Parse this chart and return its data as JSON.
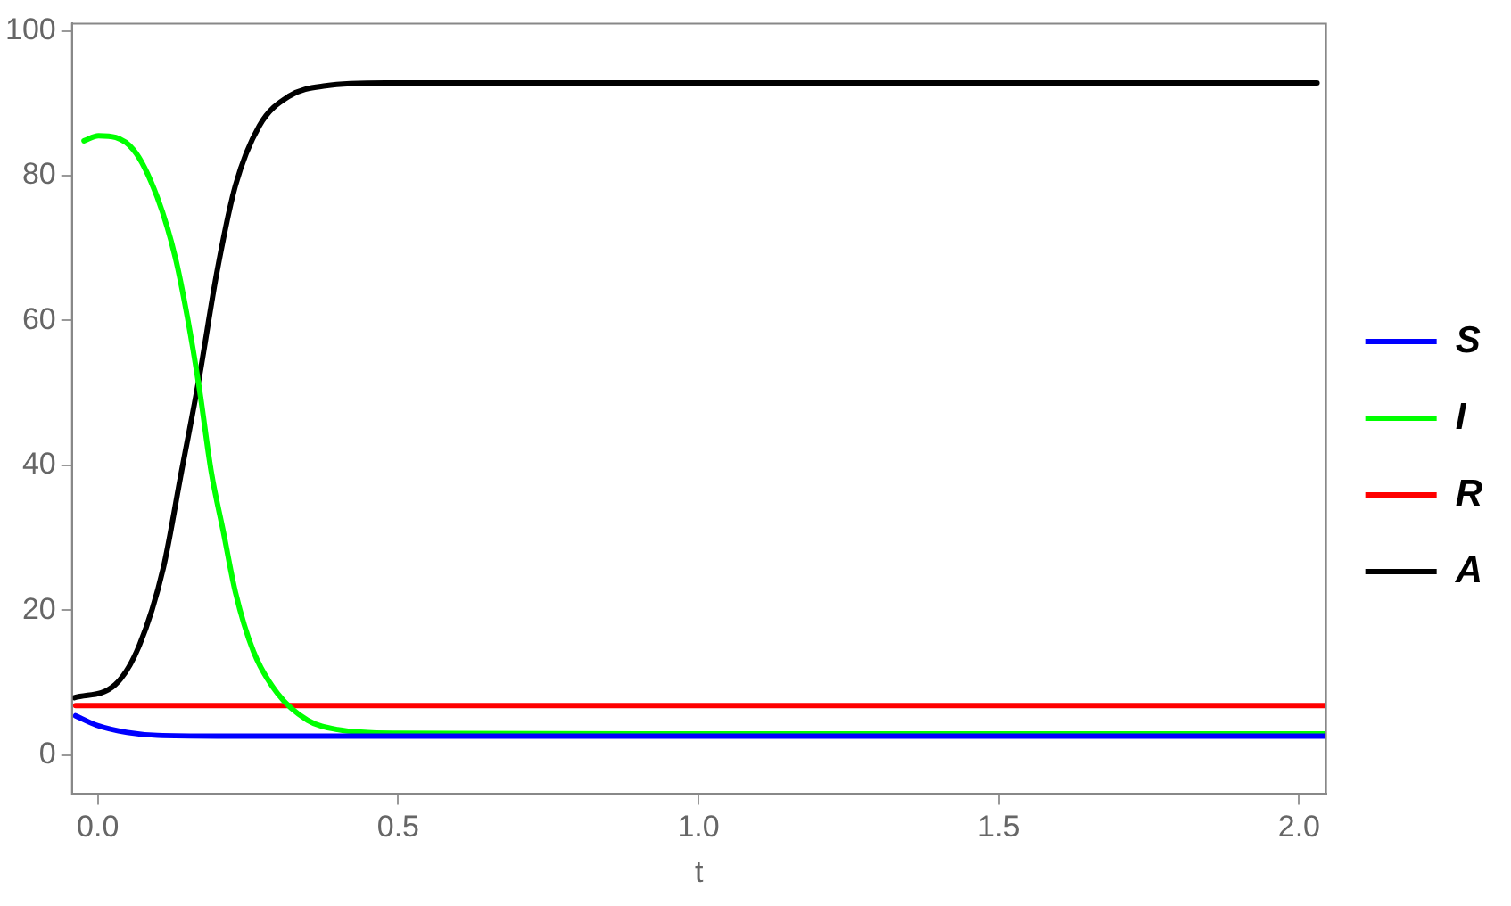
{
  "chart_data": {
    "type": "line",
    "xlabel": "t",
    "xlim": [
      -0.043,
      2.045
    ],
    "xticks": [
      {
        "value": 0,
        "label": "0.0"
      },
      {
        "value": 0.5,
        "label": "0.5"
      },
      {
        "value": 1,
        "label": "1.0"
      },
      {
        "value": 1.5,
        "label": "1.5"
      },
      {
        "value": 2,
        "label": "2.0"
      }
    ],
    "ylim": [
      -5.4,
      101
    ],
    "yticks": [
      0,
      20,
      40,
      60,
      80,
      100
    ],
    "legend": "right",
    "grid": false,
    "marker": "none",
    "line_style": "solid",
    "series": [
      {
        "name": "S",
        "color": "#0000ff",
        "x": [
          -0.037,
          -0.002,
          0.049,
          0.099,
          0.199,
          0.5,
          1,
          1.5,
          2.045
        ],
        "values": [
          5.4,
          4.1,
          3.1,
          2.7,
          2.6,
          2.6,
          2.6,
          2.6,
          2.6
        ]
      },
      {
        "name": "I",
        "color": "#00ff00",
        "x": [
          -0.023,
          0.001,
          0.059,
          0.099,
          0.129,
          0.149,
          0.169,
          0.189,
          0.209,
          0.229,
          0.259,
          0.299,
          0.349,
          0.399,
          0.498,
          1,
          1.5,
          2.045
        ],
        "values": [
          84.8,
          85.5,
          83.6,
          77,
          68.7,
          60.5,
          50.6,
          39,
          30.8,
          22.5,
          14.3,
          8.5,
          4.8,
          3.5,
          3.0,
          2.9,
          2.9,
          2.9
        ]
      },
      {
        "name": "R",
        "color": "#ff0000",
        "x": [
          -0.037,
          2.045
        ],
        "values": [
          6.8,
          6.8
        ]
      },
      {
        "name": "A",
        "color": "#000000",
        "x": [
          -0.039,
          0.029,
          0.069,
          0.109,
          0.139,
          0.169,
          0.199,
          0.229,
          0.269,
          0.319,
          0.379,
          0.479,
          1,
          1.5,
          2.03
        ],
        "values": [
          7.9,
          9.7,
          15.1,
          25.8,
          39,
          52.2,
          67,
          78.6,
          86.9,
          91,
          92.4,
          92.8,
          92.8,
          92.8,
          92.8
        ]
      }
    ]
  }
}
